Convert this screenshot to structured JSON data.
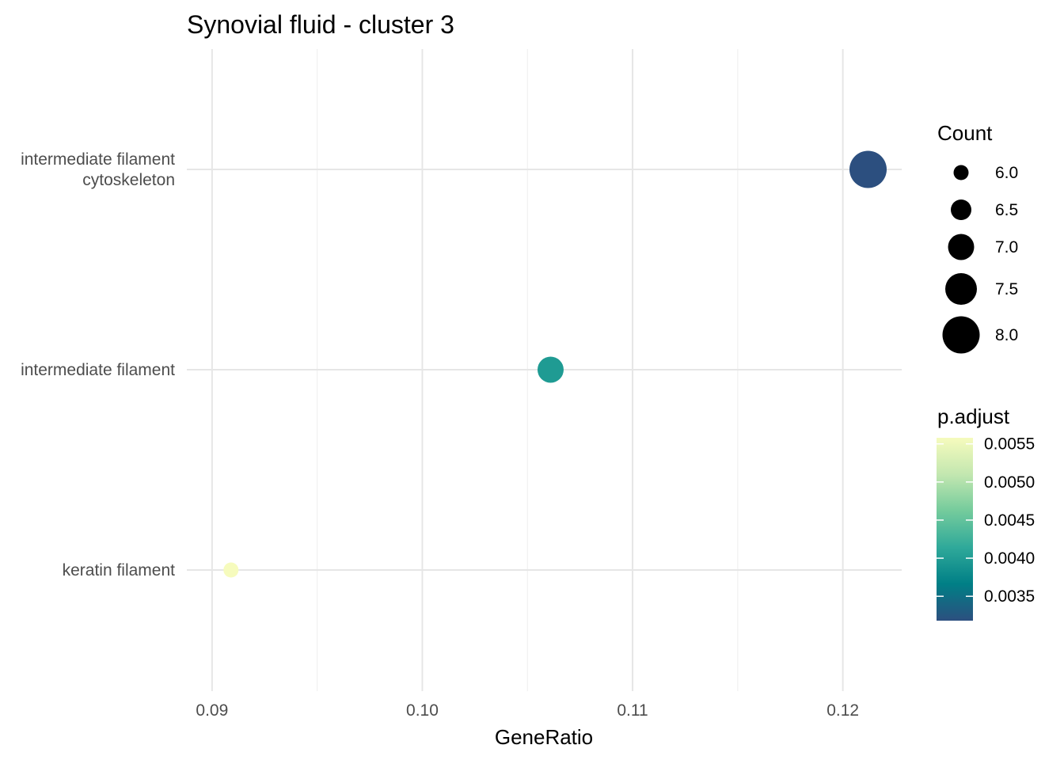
{
  "chart_data": {
    "type": "scatter",
    "title": "Synovial fluid - cluster 3",
    "xlabel": "GeneRatio",
    "ylabel": "",
    "xlim": [
      0.0888,
      0.1228
    ],
    "x_ticks": [
      "0.09",
      "0.10",
      "0.11",
      "0.12"
    ],
    "x_tick_values": [
      0.09,
      0.1,
      0.11,
      0.12
    ],
    "x_minor_values": [
      0.095,
      0.105,
      0.115
    ],
    "grid": true,
    "categories": [
      [
        "intermediate filament",
        "cytoskeleton"
      ],
      [
        "intermediate filament"
      ],
      [
        "keratin filament"
      ]
    ],
    "points": [
      {
        "category_index": 0,
        "x": 0.1212,
        "count": 8,
        "p_adjust": 0.00318
      },
      {
        "category_index": 1,
        "x": 0.1061,
        "count": 7,
        "p_adjust": 0.00398
      },
      {
        "category_index": 2,
        "x": 0.0909,
        "count": 6,
        "p_adjust": 0.00558
      }
    ],
    "size_legend": {
      "title": "Count",
      "labels": [
        "6.0",
        "6.5",
        "7.0",
        "7.5",
        "8.0"
      ],
      "values": [
        6.0,
        6.5,
        7.0,
        7.5,
        8.0
      ]
    },
    "color_legend": {
      "title": "p.adjust",
      "labels": [
        "0.0055",
        "0.0050",
        "0.0045",
        "0.0040",
        "0.0035"
      ],
      "values": [
        0.0055,
        0.005,
        0.0045,
        0.004,
        0.0035
      ],
      "range": [
        0.00318,
        0.00558
      ],
      "colors": [
        "#2c4f7f",
        "#007f86",
        "#2fa99a",
        "#74cb9c",
        "#c3e7b0",
        "#f6fbbd"
      ]
    },
    "legend_position": "right"
  }
}
